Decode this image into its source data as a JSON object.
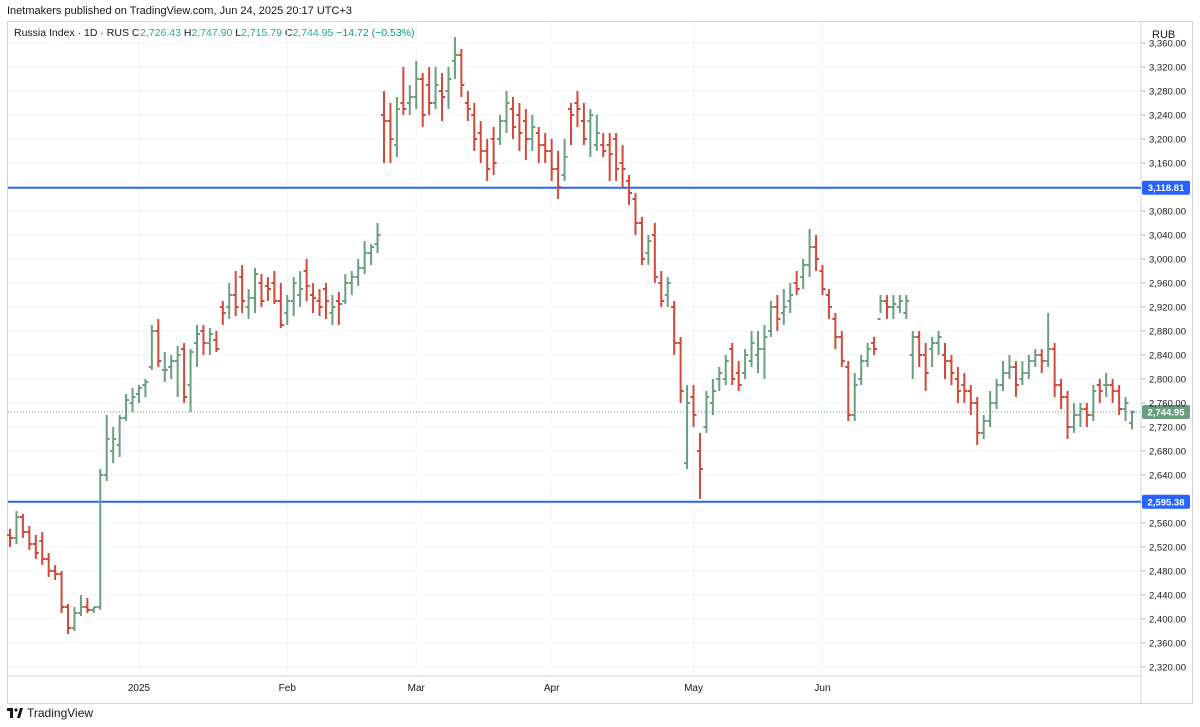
{
  "header": {
    "published_text": "Inetmakers published on TradingView.com, Jun 24, 2025 20:17 UTC+3"
  },
  "legend": {
    "symbol": "Russia Index · 1D · RUS",
    "o_label": "O",
    "o_value": "2,726.43",
    "h_label": "H",
    "h_value": "2,747.90",
    "l_label": "L",
    "l_value": "2,715.79",
    "c_label": "C",
    "c_value": "2,744.95",
    "change": "−14.72 (−0.53%)"
  },
  "currency": "RUB",
  "footer": {
    "brand": "TradingView"
  },
  "colors": {
    "up": "#6a9e7f",
    "down": "#d1493a",
    "hline": "#2962ff",
    "grid": "#f0f3fa",
    "axis_text": "#131722",
    "last_price_bg": "#6a9e7f"
  },
  "chart_data": {
    "type": "ohlc",
    "x_tick_labels": [
      {
        "label": "2025",
        "index": 20
      },
      {
        "label": "Feb",
        "index": 43
      },
      {
        "label": "Mar",
        "index": 63
      },
      {
        "label": "Apr",
        "index": 84
      },
      {
        "label": "May",
        "index": 106
      },
      {
        "label": "Jun",
        "index": 126
      }
    ],
    "y_ticks": [
      2320,
      2360,
      2400,
      2440,
      2480,
      2520,
      2560,
      2640,
      2680,
      2720,
      2760,
      2800,
      2840,
      2880,
      2920,
      2960,
      3000,
      3040,
      3080,
      3160,
      3200,
      3240,
      3280,
      3320,
      3360
    ],
    "y_tick_labels": [
      "2,320.00",
      "2,360.00",
      "2,400.00",
      "2,440.00",
      "2,480.00",
      "2,520.00",
      "2,560.00",
      "2,640.00",
      "2,680.00",
      "2,720.00",
      "2,760.00",
      "2,800.00",
      "2,840.00",
      "2,880.00",
      "2,920.00",
      "2,960.00",
      "3,000.00",
      "3,040.00",
      "3,080.00",
      "3,160.00",
      "3,200.00",
      "3,240.00",
      "3,280.00",
      "3,320.00",
      "3,360.00"
    ],
    "ylim": [
      2305,
      3395
    ],
    "horizontal_lines": [
      {
        "value": 3118.81,
        "label": "3,118.81"
      },
      {
        "value": 2595.38,
        "label": "2,595.38"
      }
    ],
    "last_price": {
      "value": 2744.95,
      "label": "2,744.95"
    },
    "bars": [
      [
        2540,
        2550,
        2520,
        2535
      ],
      [
        2535,
        2580,
        2525,
        2570
      ],
      [
        2570,
        2575,
        2535,
        2545
      ],
      [
        2545,
        2555,
        2515,
        2525
      ],
      [
        2525,
        2540,
        2500,
        2510
      ],
      [
        2530,
        2545,
        2490,
        2500
      ],
      [
        2500,
        2510,
        2470,
        2480
      ],
      [
        2480,
        2490,
        2465,
        2475
      ],
      [
        2475,
        2480,
        2410,
        2420
      ],
      [
        2420,
        2425,
        2375,
        2385
      ],
      [
        2385,
        2420,
        2380,
        2410
      ],
      [
        2410,
        2440,
        2405,
        2420
      ],
      [
        2420,
        2435,
        2410,
        2415
      ],
      [
        2415,
        2420,
        2410,
        2420
      ],
      [
        2420,
        2650,
        2415,
        2640
      ],
      [
        2640,
        2740,
        2630,
        2700
      ],
      [
        2680,
        2720,
        2660,
        2700
      ],
      [
        2690,
        2740,
        2670,
        2735
      ],
      [
        2735,
        2775,
        2730,
        2765
      ],
      [
        2760,
        2785,
        2745,
        2770
      ],
      [
        2775,
        2790,
        2760,
        2785
      ],
      [
        2790,
        2800,
        2770,
        2795
      ],
      [
        2820,
        2890,
        2815,
        2880
      ],
      [
        2880,
        2900,
        2820,
        2830
      ],
      [
        2815,
        2845,
        2795,
        2815
      ],
      [
        2820,
        2840,
        2800,
        2830
      ],
      [
        2830,
        2855,
        2770,
        2840
      ],
      [
        2850,
        2860,
        2760,
        2770
      ],
      [
        2790,
        2850,
        2745,
        2845
      ],
      [
        2860,
        2890,
        2820,
        2875
      ],
      [
        2880,
        2890,
        2840,
        2860
      ],
      [
        2860,
        2885,
        2840,
        2875
      ],
      [
        2865,
        2880,
        2845,
        2850
      ],
      [
        2920,
        2930,
        2890,
        2910
      ],
      [
        2920,
        2960,
        2900,
        2940
      ],
      [
        2940,
        2980,
        2905,
        2920
      ],
      [
        2970,
        2990,
        2910,
        2930
      ],
      [
        2920,
        2950,
        2900,
        2935
      ],
      [
        2935,
        2985,
        2910,
        2975
      ],
      [
        2960,
        2975,
        2920,
        2930
      ],
      [
        2955,
        2970,
        2930,
        2950
      ],
      [
        2960,
        2980,
        2925,
        2930
      ],
      [
        2930,
        2960,
        2885,
        2890
      ],
      [
        2910,
        2940,
        2890,
        2930
      ],
      [
        2930,
        2970,
        2905,
        2960
      ],
      [
        2940,
        2980,
        2920,
        2950
      ],
      [
        2980,
        3000,
        2930,
        2955
      ],
      [
        2940,
        2960,
        2910,
        2935
      ],
      [
        2930,
        2950,
        2905,
        2920
      ],
      [
        2950,
        2960,
        2900,
        2930
      ],
      [
        2910,
        2940,
        2890,
        2920
      ],
      [
        2930,
        2945,
        2890,
        2925
      ],
      [
        2930,
        2975,
        2925,
        2960
      ],
      [
        2960,
        2980,
        2940,
        2970
      ],
      [
        2970,
        3000,
        2955,
        2985
      ],
      [
        2985,
        3030,
        2975,
        3010
      ],
      [
        3010,
        3025,
        2990,
        3020
      ],
      [
        3025,
        3060,
        3010,
        3040
      ],
      [
        3240,
        3280,
        3160,
        3230
      ],
      [
        3230,
        3260,
        3160,
        3200
      ],
      [
        3190,
        3270,
        3170,
        3250
      ],
      [
        3260,
        3320,
        3240,
        3250
      ],
      [
        3260,
        3290,
        3240,
        3270
      ],
      [
        3270,
        3330,
        3250,
        3300
      ],
      [
        3300,
        3310,
        3220,
        3240
      ],
      [
        3290,
        3320,
        3240,
        3260
      ],
      [
        3260,
        3320,
        3250,
        3290
      ],
      [
        3280,
        3310,
        3230,
        3270
      ],
      [
        3280,
        3320,
        3250,
        3300
      ],
      [
        3330,
        3370,
        3300,
        3340
      ],
      [
        3340,
        3350,
        3270,
        3290
      ],
      [
        3260,
        3280,
        3230,
        3250
      ],
      [
        3240,
        3260,
        3180,
        3200
      ],
      [
        3210,
        3230,
        3160,
        3180
      ],
      [
        3180,
        3200,
        3130,
        3150
      ],
      [
        3200,
        3220,
        3140,
        3160
      ],
      [
        3200,
        3240,
        3190,
        3230
      ],
      [
        3230,
        3280,
        3210,
        3260
      ],
      [
        3250,
        3270,
        3200,
        3220
      ],
      [
        3240,
        3260,
        3180,
        3210
      ],
      [
        3230,
        3250,
        3165,
        3200
      ],
      [
        3200,
        3240,
        3180,
        3220
      ],
      [
        3210,
        3220,
        3160,
        3190
      ],
      [
        3190,
        3210,
        3160,
        3180
      ],
      [
        3180,
        3200,
        3130,
        3150
      ],
      [
        3150,
        3180,
        3100,
        3120
      ],
      [
        3140,
        3200,
        3130,
        3170
      ],
      [
        3250,
        3260,
        3190,
        3240
      ],
      [
        3260,
        3280,
        3220,
        3250
      ],
      [
        3230,
        3260,
        3190,
        3200
      ],
      [
        3230,
        3250,
        3170,
        3240
      ],
      [
        3190,
        3240,
        3180,
        3210
      ],
      [
        3190,
        3210,
        3170,
        3180
      ],
      [
        3190,
        3210,
        3130,
        3175
      ],
      [
        3200,
        3210,
        3130,
        3150
      ],
      [
        3160,
        3190,
        3120,
        3150
      ],
      [
        3130,
        3140,
        3090,
        3110
      ],
      [
        3100,
        3110,
        3040,
        3060
      ],
      [
        3060,
        3070,
        2990,
        3000
      ],
      [
        3010,
        3040,
        2990,
        3030
      ],
      [
        3040,
        3060,
        2960,
        2970
      ],
      [
        2960,
        2980,
        2920,
        2930
      ],
      [
        2940,
        2970,
        2920,
        2960
      ],
      [
        2920,
        2930,
        2840,
        2860
      ],
      [
        2860,
        2870,
        2760,
        2780
      ],
      [
        2660,
        2790,
        2650,
        2760
      ],
      [
        2770,
        2790,
        2720,
        2740
      ],
      [
        2680,
        2710,
        2600,
        2650
      ],
      [
        2720,
        2780,
        2710,
        2770
      ],
      [
        2760,
        2800,
        2740,
        2780
      ],
      [
        2800,
        2820,
        2780,
        2810
      ],
      [
        2800,
        2840,
        2790,
        2830
      ],
      [
        2850,
        2860,
        2790,
        2800
      ],
      [
        2810,
        2830,
        2780,
        2790
      ],
      [
        2810,
        2850,
        2800,
        2840
      ],
      [
        2830,
        2880,
        2820,
        2860
      ],
      [
        2840,
        2880,
        2810,
        2850
      ],
      [
        2850,
        2890,
        2800,
        2870
      ],
      [
        2880,
        2930,
        2870,
        2920
      ],
      [
        2920,
        2940,
        2880,
        2900
      ],
      [
        2910,
        2950,
        2890,
        2920
      ],
      [
        2930,
        2960,
        2910,
        2940
      ],
      [
        2960,
        2980,
        2940,
        2950
      ],
      [
        2970,
        3000,
        2950,
        2990
      ],
      [
        2990,
        3050,
        2970,
        3020
      ],
      [
        3020,
        3040,
        2980,
        3000
      ],
      [
        2980,
        2990,
        2940,
        2950
      ],
      [
        2940,
        2950,
        2900,
        2920
      ],
      [
        2900,
        2910,
        2850,
        2870
      ],
      [
        2870,
        2880,
        2820,
        2830
      ],
      [
        2820,
        2830,
        2730,
        2740
      ],
      [
        2740,
        2810,
        2730,
        2790
      ],
      [
        2800,
        2840,
        2790,
        2830
      ],
      [
        2830,
        2860,
        2820,
        2850
      ],
      [
        2860,
        2870,
        2840,
        2850
      ],
      [
        2900,
        2940,
        2910,
        2930
      ],
      [
        2930,
        2940,
        2900,
        2920
      ],
      [
        2920,
        2940,
        2900,
        2925
      ],
      [
        2920,
        2940,
        2910,
        2930
      ],
      [
        2910,
        2940,
        2900,
        2930
      ],
      [
        2840,
        2880,
        2800,
        2870
      ],
      [
        2870,
        2880,
        2820,
        2840
      ],
      [
        2840,
        2860,
        2780,
        2810
      ],
      [
        2850,
        2870,
        2820,
        2860
      ],
      [
        2860,
        2880,
        2840,
        2870
      ],
      [
        2840,
        2860,
        2800,
        2830
      ],
      [
        2830,
        2840,
        2790,
        2810
      ],
      [
        2800,
        2820,
        2760,
        2780
      ],
      [
        2790,
        2810,
        2760,
        2780
      ],
      [
        2780,
        2790,
        2740,
        2760
      ],
      [
        2760,
        2770,
        2690,
        2710
      ],
      [
        2710,
        2740,
        2700,
        2730
      ],
      [
        2730,
        2780,
        2720,
        2760
      ],
      [
        2760,
        2800,
        2750,
        2790
      ],
      [
        2790,
        2830,
        2780,
        2810
      ],
      [
        2810,
        2840,
        2800,
        2820
      ],
      [
        2820,
        2830,
        2770,
        2790
      ],
      [
        2800,
        2830,
        2790,
        2810
      ],
      [
        2810,
        2840,
        2800,
        2830
      ],
      [
        2830,
        2850,
        2820,
        2840
      ],
      [
        2840,
        2850,
        2810,
        2830
      ],
      [
        2830,
        2910,
        2820,
        2850
      ],
      [
        2850,
        2860,
        2770,
        2790
      ],
      [
        2790,
        2800,
        2750,
        2770
      ],
      [
        2770,
        2780,
        2700,
        2720
      ],
      [
        2720,
        2760,
        2710,
        2740
      ],
      [
        2740,
        2760,
        2720,
        2750
      ],
      [
        2750,
        2760,
        2720,
        2740
      ],
      [
        2740,
        2790,
        2730,
        2780
      ],
      [
        2790,
        2800,
        2760,
        2780
      ],
      [
        2790,
        2810,
        2770,
        2790
      ],
      [
        2790,
        2800,
        2760,
        2780
      ],
      [
        2780,
        2790,
        2740,
        2750
      ],
      [
        2750,
        2770,
        2730,
        2760
      ],
      [
        2726.43,
        2747.9,
        2715.79,
        2744.95
      ]
    ]
  }
}
